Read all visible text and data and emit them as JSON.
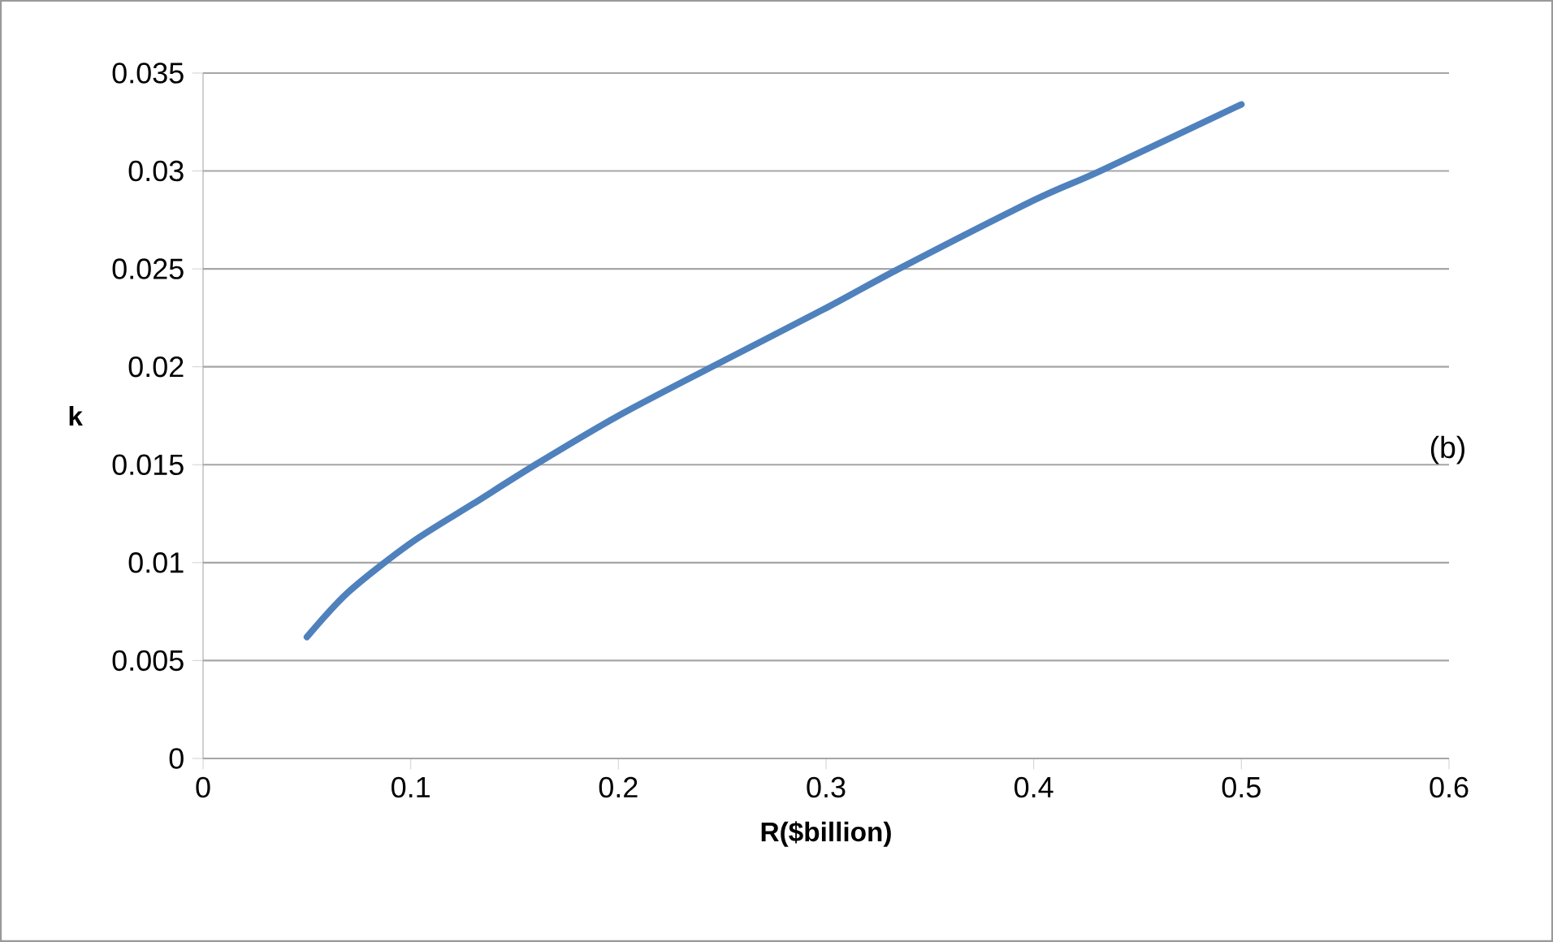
{
  "chart_data": {
    "type": "line",
    "xlabel": "R($billion)",
    "ylabel": "k",
    "annotations": [
      "(b)"
    ],
    "series": [
      {
        "color": "#4f81bd",
        "x": [
          0.05,
          0.07,
          0.1,
          0.13,
          0.16,
          0.2,
          0.245,
          0.3,
          0.335,
          0.4,
          0.432,
          0.5
        ],
        "values": [
          0.0062,
          0.0085,
          0.011,
          0.013,
          0.015,
          0.0175,
          0.02,
          0.023,
          0.025,
          0.0285,
          0.03,
          0.0334
        ]
      }
    ],
    "xlim": [
      0,
      0.6
    ],
    "xticks": [
      0,
      0.1,
      0.2,
      0.3,
      0.4,
      0.5,
      0.6
    ],
    "ylim": [
      0,
      0.035
    ],
    "yticks": [
      0,
      0.005,
      0.01,
      0.015,
      0.02,
      0.025,
      0.03,
      0.035
    ],
    "grid": "y",
    "marker": "none",
    "line_style": "solid"
  }
}
